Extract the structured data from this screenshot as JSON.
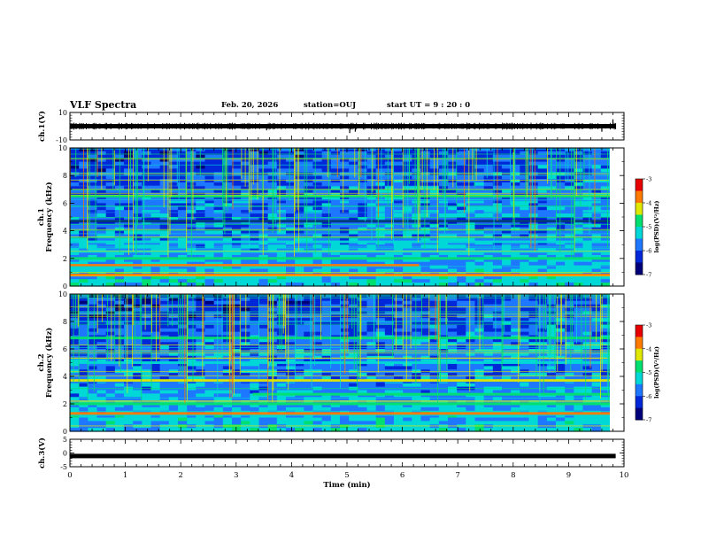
{
  "header": {
    "title": "VLF Spectra",
    "date": "Feb. 20, 2026",
    "station": "station=OUJ",
    "start_ut": "start  UT  =   9  : 20 : 0"
  },
  "chart_data": [
    {
      "type": "line",
      "panel": "ch1-waveform",
      "ylabel": "ch.1(V)",
      "ylim": [
        -10,
        10
      ],
      "yticks": [
        "10",
        "-10"
      ],
      "xlim": [
        0,
        10
      ],
      "baseline": 0,
      "spikes": [
        {
          "x": 3.55,
          "y": -3
        },
        {
          "x": 5.05,
          "y": -5
        },
        {
          "x": 5.15,
          "y": -4
        },
        {
          "x": 9.8,
          "y": 5
        },
        {
          "x": 9.6,
          "y": -4
        }
      ]
    },
    {
      "type": "heatmap",
      "panel": "ch1-spectrogram",
      "ylabel": "Frequency (kHz)",
      "channel_label": "ch.1",
      "ylim": [
        0,
        10
      ],
      "yticks": [
        "0",
        "2",
        "4",
        "6",
        "8",
        "10"
      ],
      "xlim": [
        0,
        10
      ],
      "colorbar": {
        "label": "log(PSD)(V²/Hz)",
        "ticks": [
          "-3",
          "-4",
          "-5",
          "-6",
          "-7"
        ],
        "range": [
          -7,
          -3
        ]
      },
      "bands": [
        {
          "y": 0.8,
          "level": -3.6,
          "xrange": [
            0,
            10
          ]
        },
        {
          "y": 1.5,
          "level": -3.9,
          "xrange": [
            0,
            6.3
          ]
        },
        {
          "y": 2.0,
          "level": -5.0,
          "xrange": [
            0,
            10
          ]
        },
        {
          "y": 2.5,
          "level": -5.2,
          "xrange": [
            0,
            10
          ]
        },
        {
          "y": 3.2,
          "level": -5.5,
          "xrange": [
            0,
            10
          ]
        },
        {
          "y": 4.7,
          "level": -6.8,
          "xrange": [
            0,
            10
          ]
        },
        {
          "y": 6.5,
          "level": -5.0,
          "xrange": [
            0,
            10
          ]
        }
      ]
    },
    {
      "type": "heatmap",
      "panel": "ch2-spectrogram",
      "ylabel": "Frequency (kHz)",
      "channel_label": "ch.2",
      "ylim": [
        0,
        10
      ],
      "yticks": [
        "0",
        "2",
        "4",
        "6",
        "8",
        "10"
      ],
      "xlim": [
        0,
        10
      ],
      "colorbar": {
        "label": "log(PSD)(V²/Hz)",
        "ticks": [
          "-3",
          "-4",
          "-5",
          "-6",
          "-7"
        ],
        "range": [
          -7,
          -3
        ]
      },
      "bands": [
        {
          "y": 1.3,
          "level": -3.9,
          "xrange": [
            0,
            10
          ]
        },
        {
          "y": 2.0,
          "level": -5.0,
          "xrange": [
            0,
            10
          ]
        },
        {
          "y": 2.7,
          "level": -4.8,
          "xrange": [
            3.3,
            10
          ]
        },
        {
          "y": 3.7,
          "level": -4.5,
          "xrange": [
            0,
            10
          ]
        },
        {
          "y": 5.0,
          "level": -5.5,
          "xrange": [
            0,
            10
          ]
        },
        {
          "y": 6.8,
          "level": -5.0,
          "xrange": [
            0,
            10
          ]
        }
      ]
    },
    {
      "type": "line",
      "panel": "ch3-waveform",
      "ylabel": "ch.3(V)",
      "ylim": [
        -5,
        5
      ],
      "yticks": [
        "5",
        "0",
        "-5"
      ],
      "xlim": [
        0,
        10
      ],
      "level": -1.1
    }
  ],
  "xaxis": {
    "label": "Time  (min)",
    "ticks": [
      "0",
      "1",
      "2",
      "3",
      "4",
      "5",
      "6",
      "7",
      "8",
      "9",
      "10"
    ],
    "range": [
      0,
      10
    ]
  },
  "colors": {
    "axis": "#000000",
    "background": "#ffffff",
    "colormap": [
      "#000000",
      "#00007a",
      "#0028d8",
      "#1e78ff",
      "#00d7d7",
      "#00e070",
      "#e0e800",
      "#ff7a00",
      "#e80000",
      "#ffffff"
    ]
  }
}
